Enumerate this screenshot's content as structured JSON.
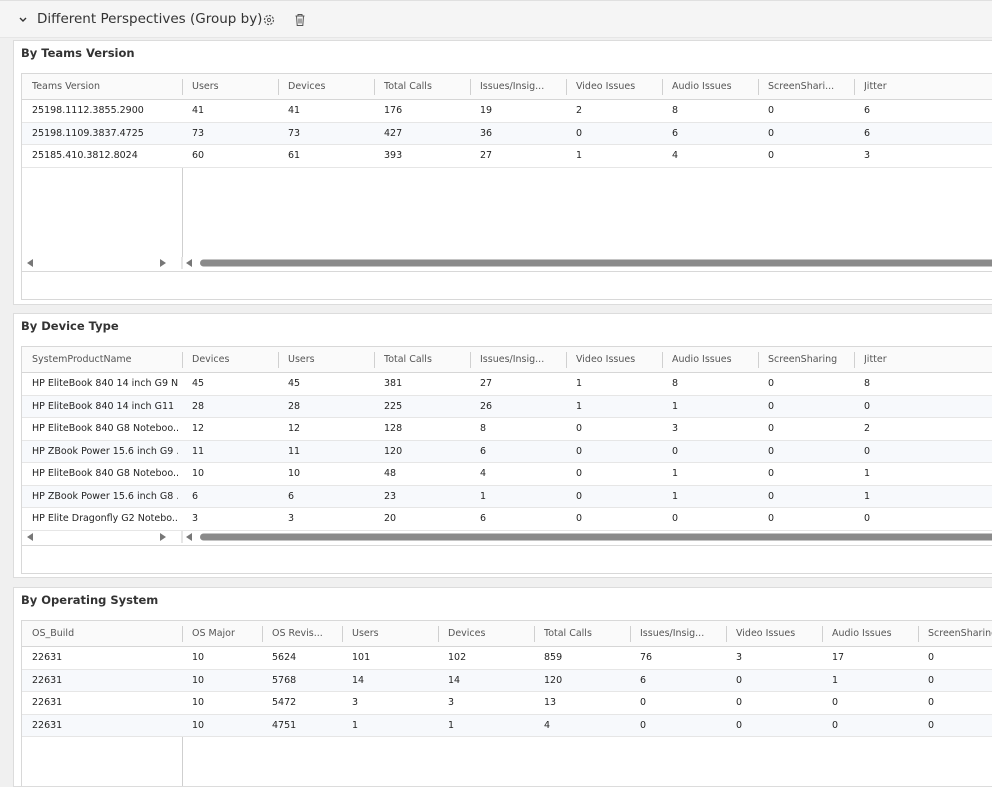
{
  "header": {
    "title": "Different Perspectives (Group by)"
  },
  "sections": [
    {
      "title": "By Teams Version",
      "columns": [
        "Teams Version",
        "Users",
        "Devices",
        "Total Calls",
        "Issues/Insig...",
        "Video Issues",
        "Audio Issues",
        "ScreenShari...",
        "Jitter"
      ],
      "rows": [
        [
          "25198.1112.3855.2900",
          41,
          41,
          176,
          19,
          2,
          8,
          0,
          6
        ],
        [
          "25198.1109.3837.4725",
          73,
          73,
          427,
          36,
          0,
          6,
          0,
          6
        ],
        [
          "25185.410.3812.8024",
          60,
          61,
          393,
          27,
          1,
          4,
          0,
          3
        ]
      ]
    },
    {
      "title": "By Device Type",
      "columns": [
        "SystemProductName",
        "Devices",
        "Users",
        "Total Calls",
        "Issues/Insig...",
        "Video Issues",
        "Audio Issues",
        "ScreenSharing",
        "Jitter"
      ],
      "rows": [
        [
          "HP EliteBook 840 14 inch G9 N...",
          45,
          45,
          381,
          27,
          1,
          8,
          0,
          8
        ],
        [
          "HP EliteBook 840 14 inch G11 ...",
          28,
          28,
          225,
          26,
          1,
          1,
          0,
          0
        ],
        [
          "HP EliteBook 840 G8 Noteboo...",
          12,
          12,
          128,
          8,
          0,
          3,
          0,
          2
        ],
        [
          "HP ZBook Power 15.6 inch G9 ...",
          11,
          11,
          120,
          6,
          0,
          0,
          0,
          0
        ],
        [
          "HP EliteBook 840 G8 Noteboo...",
          10,
          10,
          48,
          4,
          0,
          1,
          0,
          1
        ],
        [
          "HP ZBook Power 15.6 inch G8 ...",
          6,
          6,
          23,
          1,
          0,
          1,
          0,
          1
        ],
        [
          "HP Elite Dragonfly G2 Notebo...",
          3,
          3,
          20,
          6,
          0,
          0,
          0,
          0
        ]
      ]
    },
    {
      "title": "By Operating System",
      "columns": [
        "OS_Build",
        "OS Major",
        "OS Revis...",
        "Users",
        "Devices",
        "Total Calls",
        "Issues/Insig...",
        "Video Issues",
        "Audio Issues",
        "ScreenSharing"
      ],
      "rows": [
        [
          "22631",
          10,
          5624,
          101,
          102,
          859,
          76,
          3,
          17,
          0
        ],
        [
          "22631",
          10,
          5768,
          14,
          14,
          120,
          6,
          0,
          1,
          0
        ],
        [
          "22631",
          10,
          5472,
          3,
          3,
          13,
          0,
          0,
          0,
          0
        ],
        [
          "22631",
          10,
          4751,
          1,
          1,
          4,
          0,
          0,
          0,
          0
        ]
      ]
    }
  ]
}
